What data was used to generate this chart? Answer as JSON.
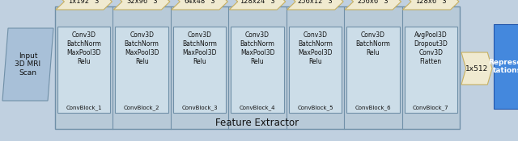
{
  "fig_width": 6.4,
  "fig_height": 1.75,
  "dpi": 100,
  "bg_color": "#c0d0e0",
  "feature_extractor_bg": "#b8cad8",
  "arrow_color": "#f0ead0",
  "arrow_edge_color": "#c8b060",
  "input_box_color": "#a8c0d8",
  "input_box_edge": "#7090a8",
  "repr_box_color": "#4488dd",
  "repr_box_edge": "#2255aa",
  "conv_block_bg": "#ccdde8",
  "conv_block_edge": "#7090a8",
  "separator_color": "#7090a8",
  "text_color": "#111111",
  "feature_extractor_label": "Feature Extractor",
  "input_label": "Input\n3D MRI\nScan",
  "repr_label": "Represen\ntations",
  "top_arrows": [
    "1x192^3",
    "32x96^3",
    "64x48^3",
    "128x24^3",
    "256x12^3",
    "256x6^3",
    "128x6^3"
  ],
  "mid_label": "1x512",
  "conv_blocks": [
    {
      "title": "Conv3D\nBatchNorm\nMaxPool3D\nRelu",
      "name": "ConvBlock_1"
    },
    {
      "title": "Conv3D\nBatchNorm\nMaxPool3D\nRelu",
      "name": "ConvBlock_2"
    },
    {
      "title": "Conv3D\nBatchNorm\nMaxPool3D\nRelu",
      "name": "ConvBlock_3"
    },
    {
      "title": "Conv3D\nBatchNorm\nMaxPool3D\nRelu",
      "name": "ConvBlock_4"
    },
    {
      "title": "Conv3D\nBatchNorm\nMaxPool3D\nRelu",
      "name": "ConvBlock_5"
    },
    {
      "title": "Conv3D\nBatchNorm\nRelu",
      "name": "ConvBlock_6"
    },
    {
      "title": "AvgPool3D\nDropout3D\nConv3D\nFlatten",
      "name": "ConvBlock_7"
    }
  ]
}
